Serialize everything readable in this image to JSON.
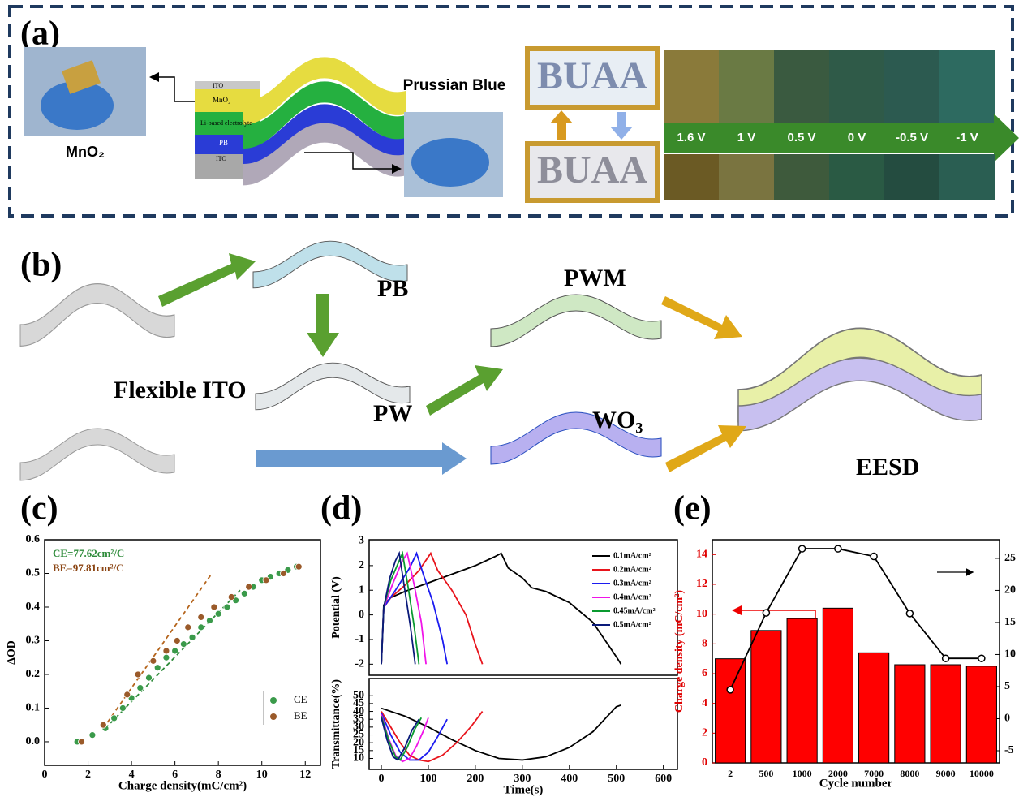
{
  "panel_a": {
    "label": "(a)",
    "mno2_caption": "MnO₂",
    "layers": [
      "ITO",
      "MnO₂",
      "Li-based electrolyte",
      "PB",
      "ITO"
    ],
    "pb_caption": "Prussian Blue",
    "sample_text": [
      "BUAA",
      "BUAA"
    ],
    "voltages": [
      "1.6 V",
      "1 V",
      "0.5 V",
      "0 V",
      "-0.5 V",
      "-1 V"
    ]
  },
  "panel_b": {
    "label": "(b)",
    "substrate": "Flexible ITO",
    "steps": [
      "PB",
      "PW",
      "PWM",
      "WO₃",
      "EESD"
    ]
  },
  "panel_labels": [
    "(c)",
    "(d)",
    "(e)"
  ],
  "chart_data": [
    {
      "type": "scatter",
      "xlabel": "Charge density(mC/cm²)",
      "ylabel": "ΔOD",
      "xlim": [
        0,
        12.7
      ],
      "ylim": [
        -0.07,
        0.6
      ],
      "xticks": [
        0,
        2,
        4,
        6,
        8,
        10,
        12
      ],
      "yticks": [
        {
          "value": 0,
          "label": "0.0"
        },
        0.1,
        0.2,
        0.3,
        0.4,
        0.5,
        0.6
      ],
      "legend": "lower right",
      "annotations": [
        {
          "text": "CE=77.62cm²/C",
          "color": "#2e8b3a"
        },
        {
          "text": "BE=97.81cm²/C",
          "color": "#8b4513"
        }
      ],
      "series": [
        {
          "name": "CE",
          "color": "#3a9a4a",
          "x": [
            1.5,
            2.2,
            2.8,
            3.2,
            3.6,
            4,
            4.4,
            4.8,
            5.2,
            5.6,
            6,
            6.4,
            6.8,
            7.2,
            7.6,
            8,
            8.4,
            8.8,
            9.2,
            9.6,
            10,
            10.4,
            10.8,
            11.2,
            11.6
          ],
          "values": [
            0,
            0.02,
            0.04,
            0.07,
            0.1,
            0.13,
            0.16,
            0.19,
            0.22,
            0.25,
            0.27,
            0.29,
            0.31,
            0.34,
            0.36,
            0.38,
            0.4,
            0.42,
            0.44,
            0.46,
            0.48,
            0.49,
            0.5,
            0.51,
            0.52
          ]
        },
        {
          "name": "BE",
          "color": "#9a5a2a",
          "x": [
            1.7,
            2.7,
            3.8,
            4.3,
            5,
            5.6,
            6.1,
            6.6,
            7.2,
            7.8,
            8.6,
            9.4,
            10.2,
            11,
            11.7
          ],
          "values": [
            0,
            0.05,
            0.14,
            0.2,
            0.24,
            0.27,
            0.3,
            0.34,
            0.37,
            0.4,
            0.43,
            0.46,
            0.48,
            0.5,
            0.52
          ]
        }
      ],
      "fit_lines": [
        {
          "color": "#2e8b3a",
          "x": [
            2.8,
            9
          ],
          "values": [
            0.04,
            0.45
          ]
        },
        {
          "color": "#b5651d",
          "x": [
            2.7,
            7.7
          ],
          "values": [
            0.04,
            0.5
          ]
        }
      ]
    },
    {
      "type": "line",
      "ylabel": "Potential (V)",
      "xlim": [
        -26,
        630
      ],
      "ylim": [
        -2.45,
        3.05
      ],
      "yticks": [
        -2,
        -1,
        0,
        1,
        2,
        3
      ],
      "legend": "upper right",
      "series": [
        {
          "name": "0.1mA/cm²",
          "color": "#000000",
          "x": [
            0,
            5,
            20,
            50,
            100,
            150,
            200,
            240,
            255,
            270,
            300,
            320,
            350,
            400,
            450,
            500,
            510
          ],
          "values": [
            -2,
            0.4,
            0.7,
            0.95,
            1.3,
            1.65,
            2,
            2.35,
            2.5,
            1.9,
            1.5,
            1.1,
            0.95,
            0.5,
            -0.3,
            -1.7,
            -2
          ]
        },
        {
          "name": "0.2mA/cm²",
          "color": "#e8141c",
          "x": [
            0,
            5,
            20,
            50,
            80,
            105,
            120,
            150,
            180,
            200,
            215
          ],
          "values": [
            -2,
            0.3,
            0.7,
            1.2,
            1.8,
            2.5,
            1.8,
            1,
            0,
            -1.2,
            -2
          ]
        },
        {
          "name": "0.3mA/cm²",
          "color": "#1c1cf0",
          "x": [
            0,
            5,
            30,
            60,
            75,
            90,
            110,
            130,
            140
          ],
          "values": [
            -2,
            0.3,
            1,
            1.9,
            2.5,
            1.6,
            0.5,
            -1,
            -2
          ]
        },
        {
          "name": "0.4mA/cm²",
          "color": "#f014e8",
          "x": [
            0,
            5,
            25,
            45,
            55,
            70,
            85,
            95
          ],
          "values": [
            -2,
            0.3,
            1.3,
            2.2,
            2.5,
            1.2,
            -0.3,
            -2
          ]
        },
        {
          "name": "0.45mA/cm²",
          "color": "#0a9a30",
          "x": [
            0,
            5,
            20,
            38,
            45,
            58,
            70,
            80
          ],
          "values": [
            -2,
            0.3,
            1.4,
            2.2,
            2.5,
            1,
            -0.5,
            -2
          ]
        },
        {
          "name": "0.5mA/cm²",
          "color": "#0a1a7a",
          "x": [
            0,
            5,
            18,
            30,
            38,
            50,
            62,
            72
          ],
          "values": [
            -2,
            0.3,
            1.5,
            2.2,
            2.5,
            1,
            -0.5,
            -2
          ]
        }
      ]
    },
    {
      "type": "line",
      "xlabel": "Time(s)",
      "ylabel": "Transmittance(%)",
      "xlim": [
        -26,
        630
      ],
      "ylim": [
        3,
        61
      ],
      "xticks": [
        0,
        100,
        200,
        300,
        400,
        500,
        600
      ],
      "yticks": [
        10,
        15,
        20,
        25,
        30,
        35,
        40,
        45,
        50
      ],
      "series": [
        {
          "color": "#000000",
          "x": [
            0,
            50,
            100,
            150,
            200,
            250,
            300,
            350,
            400,
            450,
            500,
            510
          ],
          "values": [
            42,
            37,
            30,
            22,
            15,
            10,
            9,
            11,
            17,
            27,
            43,
            44
          ]
        },
        {
          "color": "#e8141c",
          "x": [
            0,
            20,
            40,
            60,
            80,
            100,
            130,
            160,
            190,
            215
          ],
          "values": [
            40,
            30,
            20,
            12,
            9,
            8,
            12,
            20,
            30,
            40
          ]
        },
        {
          "color": "#1c1cf0",
          "x": [
            0,
            20,
            40,
            60,
            80,
            100,
            120,
            140
          ],
          "values": [
            39,
            25,
            14,
            9,
            9,
            14,
            24,
            35
          ]
        },
        {
          "color": "#f014e8",
          "x": [
            0,
            15,
            30,
            45,
            60,
            75,
            90,
            100
          ],
          "values": [
            38,
            23,
            12,
            8,
            10,
            18,
            28,
            36
          ]
        },
        {
          "color": "#0a9a30",
          "x": [
            0,
            15,
            30,
            40,
            55,
            70,
            85
          ],
          "values": [
            37,
            22,
            11,
            9,
            17,
            28,
            36
          ]
        },
        {
          "color": "#0a1a7a",
          "x": [
            0,
            12,
            25,
            35,
            50,
            65,
            80
          ],
          "values": [
            36,
            22,
            11,
            9,
            17,
            28,
            35
          ]
        }
      ]
    },
    {
      "type": "bar",
      "xlabel": "Cycle number",
      "ylabel": "Charge density (mC/cm²)",
      "ylabel_color": "#e00000",
      "categories": [
        "2",
        "500",
        "1000",
        "2000",
        "7000",
        "8000",
        "9000",
        "10000"
      ],
      "ylim": [
        0,
        15
      ],
      "yticks": [
        0,
        2,
        4,
        6,
        8,
        10,
        12,
        14
      ],
      "y2lim": [
        -6.9,
        27.9
      ],
      "y2ticks": [
        -5,
        0,
        5,
        10,
        15,
        20,
        25
      ],
      "series": [
        {
          "color": "#ff0000",
          "values": [
            7,
            8.9,
            9.7,
            10.4,
            7.4,
            6.6,
            6.6,
            6.5
          ]
        },
        {
          "color": "#000000",
          "axis": "y2",
          "values": [
            4.5,
            16.5,
            26.5,
            26.5,
            25.3,
            16.4,
            9.4,
            9.4
          ]
        }
      ]
    }
  ]
}
